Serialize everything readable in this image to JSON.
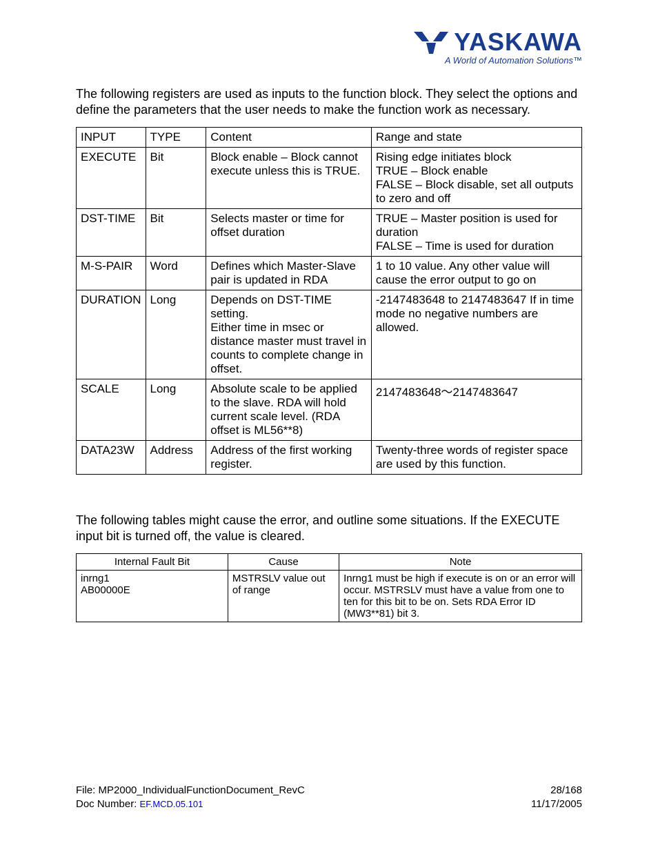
{
  "logo": {
    "company": "YASKAWA",
    "tagline": "A World of Automation Solutions™",
    "brand_color": "#1a3c8c"
  },
  "intro1": "The following registers are used as inputs to the function block.  They select the options and define the parameters that the user needs to make the function work as necessary.",
  "table1": {
    "headers": [
      "INPUT",
      "TYPE",
      "Content",
      "Range and state"
    ],
    "rows": [
      {
        "input": "EXECUTE",
        "type": "Bit",
        "content": "Block enable – Block cannot execute unless this is TRUE.",
        "range": "Rising edge initiates block\nTRUE – Block enable\nFALSE – Block disable, set all outputs to zero and off"
      },
      {
        "input": "DST-TIME",
        "type": "Bit",
        "content": "Selects master or time for offset duration",
        "range": "TRUE – Master position is used for duration\nFALSE – Time is used for duration"
      },
      {
        "input": "M-S-PAIR",
        "type": "Word",
        "content": "Defines which Master-Slave pair is updated in RDA",
        "range": "1 to 10 value.  Any other value will cause the error output to go on"
      },
      {
        "input": "DURATION",
        "type": "Long",
        "content": "Depends on DST-TIME setting.\nEither time in msec or distance master must travel in counts to complete change in offset.",
        "range": "-2147483648 to 2147483647 If in time mode no negative numbers are allowed."
      },
      {
        "input": "SCALE",
        "type": "Long",
        "content": "Absolute scale to be applied to the slave. RDA will hold current scale level. (RDA offset is ML56**8)",
        "range": "2147483648～2147483647"
      },
      {
        "input": "DATA23W",
        "type": "Address",
        "content": "Address of the first working register.",
        "range": "Twenty-three words of register space are used by this function."
      }
    ]
  },
  "intro2": "The following tables might cause the error, and outline some situations.  If the EXECUTE input bit is turned off, the value is cleared.",
  "table2": {
    "headers": [
      "Internal Fault Bit",
      "Cause",
      "Note"
    ],
    "rows": [
      {
        "bit": "inrng1\nAB00000E",
        "cause": "MSTRSLV value out of range",
        "note": "Inrng1 must be high if execute is on or an error will occur. MSTRSLV must have a value from one to ten for this bit to be on. Sets RDA Error ID (MW3**81) bit 3."
      }
    ]
  },
  "footer": {
    "file_label": "File:  MP2000_IndividualFunctionDocument_RevC",
    "doc_label": "Doc Number:  ",
    "doc_number": "EF.MCD.05.101",
    "page": "28/168",
    "date": "11/17/2005"
  }
}
